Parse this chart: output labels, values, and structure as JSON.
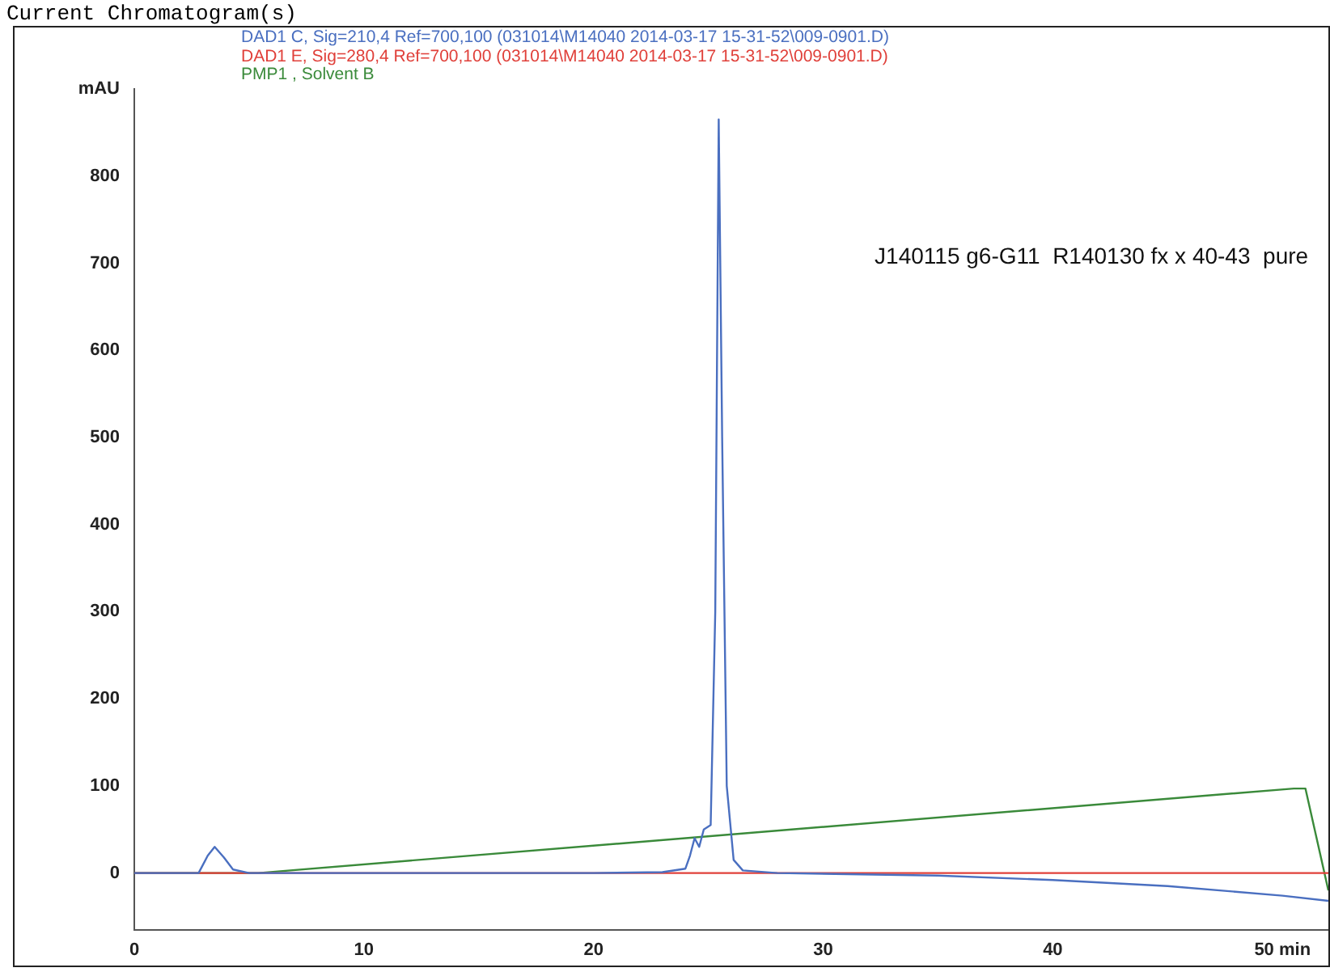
{
  "chart_data": {
    "type": "line",
    "title": "Current Chromatogram(s)",
    "annotations": [
      "J140115 g6-G11  R140130 fx x 40-43  pure"
    ],
    "xlim": [
      0,
      52
    ],
    "xticks": [
      0,
      10,
      20,
      30,
      40,
      {
        "value": 50,
        "label": "50 min"
      }
    ],
    "ylim": [
      -65,
      900
    ],
    "yticks": [
      0,
      100,
      200,
      300,
      400,
      500,
      600,
      700,
      800,
      {
        "value": 900,
        "label": "mAU"
      }
    ],
    "grid": false,
    "marker": "none",
    "line_style": "solid",
    "series": [
      {
        "name": "DAD1 C, Sig=210,4 Ref=700,100 (031014\\M14040 2014-03-17 15-31-52\\009-0901.D)",
        "color": "#4a6fc0",
        "x": [
          0,
          2.8,
          3.2,
          3.5,
          3.9,
          4.3,
          5,
          20,
          23,
          24,
          24.2,
          24.4,
          24.6,
          24.8,
          25.1,
          25.3,
          25.45,
          25.6,
          25.8,
          26.1,
          26.5,
          28,
          35,
          40,
          45,
          50,
          52
        ],
        "values": [
          0,
          0,
          20,
          30,
          18,
          4,
          0,
          0,
          1,
          5,
          20,
          40,
          30,
          50,
          55,
          300,
          865,
          500,
          100,
          15,
          3,
          0,
          -3,
          -8,
          -15,
          -26,
          -32
        ]
      },
      {
        "name": "DAD1 E, Sig=280,4 Ref=700,100 (031014\\M14040 2014-03-17 15-31-52\\009-0901.D)",
        "color": "#e0403a",
        "x": [
          0,
          52
        ],
        "values": [
          0,
          0
        ]
      },
      {
        "name": "PMP1 , Solvent B",
        "color": "#3a8a3a",
        "x": [
          0,
          5.4,
          50.5,
          51,
          52
        ],
        "values": [
          0,
          0,
          97,
          97,
          -20
        ]
      }
    ]
  }
}
